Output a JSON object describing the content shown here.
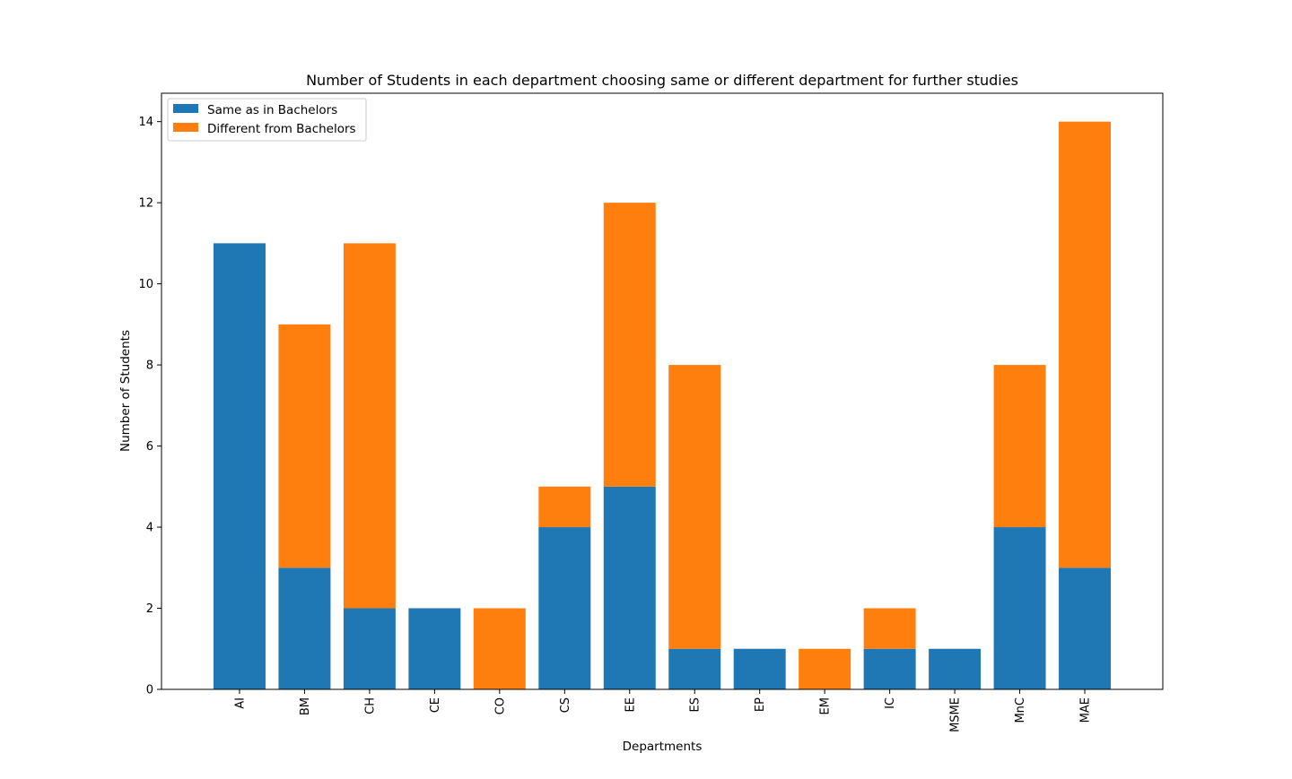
{
  "colors": {
    "same": "#1f77b4",
    "different": "#ff7f0e",
    "axes": "#000000",
    "background": "#ffffff"
  },
  "chart_data": {
    "type": "bar",
    "stacked": true,
    "title": "Number of Students in each department choosing same or different department for further studies",
    "xlabel": "Departments",
    "ylabel": "Number of Students",
    "ylim": [
      0,
      14.7
    ],
    "yticks": [
      0,
      2,
      4,
      6,
      8,
      10,
      12,
      14
    ],
    "grid": false,
    "legend_position": "top-left",
    "categories": [
      "AI",
      "BM",
      "CH",
      "CE",
      "CO",
      "CS",
      "EE",
      "ES",
      "EP",
      "EM",
      "IC",
      "MSME",
      "MnC",
      "MAE"
    ],
    "series": [
      {
        "name": "Same as in Bachelors",
        "color": "#1f77b4",
        "values": [
          11,
          3,
          2,
          2,
          0,
          4,
          5,
          1,
          1,
          0,
          1,
          1,
          4,
          3
        ]
      },
      {
        "name": "Different from Bachelors",
        "color": "#ff7f0e",
        "values": [
          0,
          6,
          9,
          0,
          2,
          1,
          7,
          7,
          0,
          1,
          1,
          0,
          4,
          11
        ]
      }
    ]
  }
}
